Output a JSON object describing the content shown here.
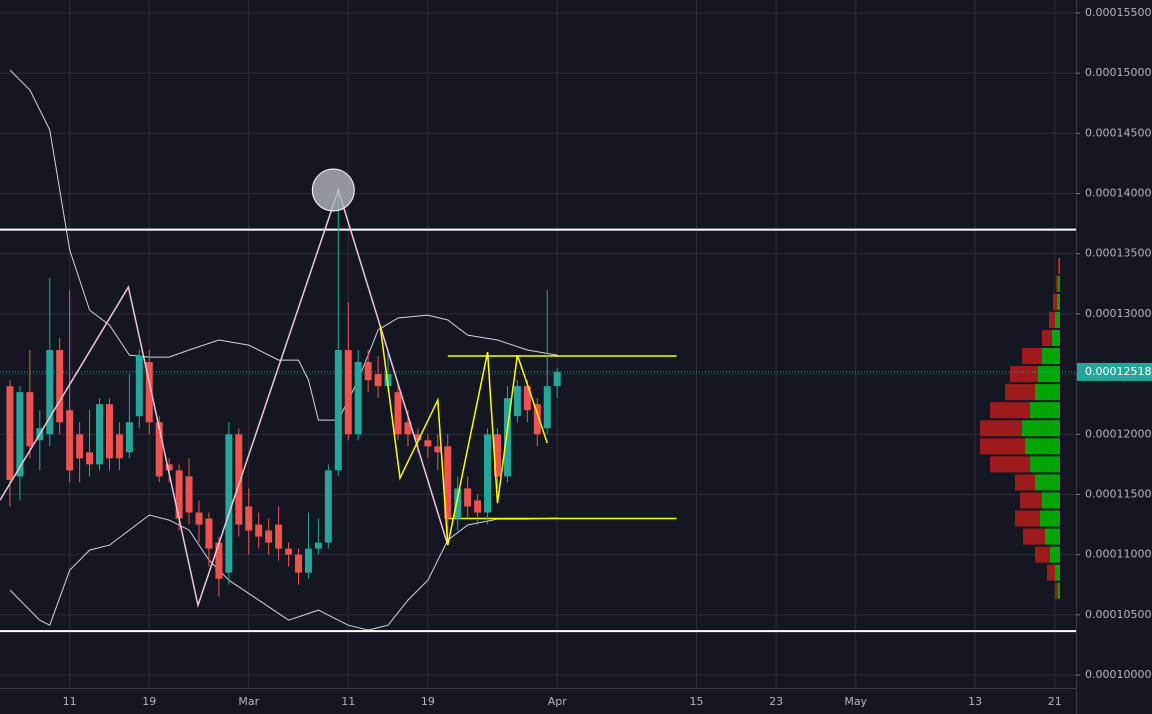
{
  "chart_data": {
    "type": "candlestick",
    "colors": {
      "up": "#26a69a",
      "down": "#ef5350",
      "grid": "#2a2e39",
      "band": "#d1d4dc",
      "level": "#ffffff",
      "pattern": "#f2c4d8",
      "channel": "#ffff00",
      "profile_up": "#00c800",
      "profile_down": "#b71c1c",
      "last": "#26a69a"
    },
    "xlim": [
      -1,
      107.14
    ],
    "ylim": [
      9.892e-05,
      0.00015608
    ],
    "xticks": [
      {
        "value": 6,
        "label": "11"
      },
      {
        "value": 14,
        "label": "19"
      },
      {
        "value": 24,
        "label": "Mar"
      },
      {
        "value": 34,
        "label": "11"
      },
      {
        "value": 42,
        "label": "19"
      },
      {
        "value": 55,
        "label": "Apr"
      },
      {
        "value": 69,
        "label": "15"
      },
      {
        "value": 77,
        "label": "23"
      },
      {
        "value": 85,
        "label": "May"
      },
      {
        "value": 97,
        "label": "13"
      },
      {
        "value": 105,
        "label": "21"
      }
    ],
    "yticks": [
      {
        "value": 0.0001,
        "label": "0.00010000"
      },
      {
        "value": 0.000105,
        "label": "0.00010500"
      },
      {
        "value": 0.00011,
        "label": "0.00011000"
      },
      {
        "value": 0.000115,
        "label": "0.00011500"
      },
      {
        "value": 0.00012,
        "label": "0.00012000"
      },
      {
        "value": 0.000125,
        "label": "0.00012500"
      },
      {
        "value": 0.00013,
        "label": "0.00013000"
      },
      {
        "value": 0.000135,
        "label": "0.00013500"
      },
      {
        "value": 0.00014,
        "label": "0.00014000"
      },
      {
        "value": 0.000145,
        "label": "0.00014500"
      },
      {
        "value": 0.00015,
        "label": "0.00015000"
      },
      {
        "value": 0.000155,
        "label": "0.00015500"
      }
    ],
    "grid": true,
    "last_price": {
      "value": 0.00012518,
      "label": "0.00012518"
    },
    "candles": {
      "x": [
        0,
        1,
        2,
        3,
        4,
        5,
        6,
        7,
        8,
        9,
        10,
        11,
        12,
        13,
        14,
        15,
        16,
        17,
        18,
        19,
        20,
        21,
        22,
        23,
        24,
        25,
        26,
        27,
        28,
        29,
        30,
        31,
        32,
        33,
        34,
        35,
        36,
        37,
        38,
        39,
        40,
        41,
        42,
        43,
        44,
        45,
        46,
        47,
        48,
        49,
        50,
        51,
        52,
        53,
        54,
        55
      ],
      "open": [
        0.000124,
        0.0001165,
        0.0001235,
        0.0001195,
        0.00012,
        0.000127,
        0.000122,
        0.00012,
        0.0001185,
        0.0001175,
        0.0001225,
        0.00012,
        0.0001185,
        0.0001215,
        0.000126,
        0.000121,
        0.0001175,
        0.000117,
        0.0001165,
        0.0001135,
        0.000113,
        0.000111,
        0.0001085,
        0.00012,
        0.000114,
        0.0001125,
        0.000112,
        0.0001125,
        0.0001105,
        0.00011,
        0.0001085,
        0.0001105,
        0.000111,
        0.000117,
        0.000127,
        0.00012,
        0.000126,
        0.000125,
        0.000124,
        0.0001235,
        0.000121,
        0.00012,
        0.0001195,
        0.000119,
        0.000119,
        0.000113,
        0.0001155,
        0.0001145,
        0.0001135,
        0.00012,
        0.0001165,
        0.0001215,
        0.000124,
        0.0001225,
        0.0001205,
        0.000124
      ],
      "high": [
        0.0001245,
        0.000124,
        0.000127,
        0.000122,
        0.000133,
        0.000128,
        0.000132,
        0.000121,
        0.000122,
        0.000123,
        0.000123,
        0.000121,
        0.000125,
        0.000127,
        0.000127,
        0.0001215,
        0.000118,
        0.0001175,
        0.000118,
        0.0001145,
        0.0001135,
        0.0001115,
        0.000121,
        0.0001205,
        0.0001155,
        0.0001135,
        0.000113,
        0.000114,
        0.000111,
        0.0001105,
        0.0001135,
        0.000113,
        0.0001175,
        0.00014,
        0.000131,
        0.000127,
        0.000127,
        0.0001265,
        0.000127,
        0.000124,
        0.000122,
        0.0001205,
        0.00012,
        0.00012,
        0.00012,
        0.0001165,
        0.0001165,
        0.000115,
        0.0001205,
        0.0001205,
        0.000124,
        0.0001245,
        0.0001245,
        0.000123,
        0.000132,
        0.0001255
      ],
      "low": [
        0.000114,
        0.0001145,
        0.000118,
        0.000117,
        0.000119,
        0.00012,
        0.000116,
        0.000116,
        0.0001165,
        0.000117,
        0.000117,
        0.000117,
        0.000118,
        0.0001205,
        0.00012,
        0.000116,
        0.000116,
        0.000112,
        0.0001125,
        0.000111,
        0.000109,
        0.0001065,
        0.0001075,
        0.0001115,
        0.00011,
        0.0001105,
        0.00011,
        0.0001095,
        0.000109,
        0.0001075,
        0.000108,
        0.00011,
        0.0001105,
        0.0001165,
        0.0001195,
        0.0001195,
        0.0001235,
        0.000123,
        0.0001235,
        0.0001195,
        0.000119,
        0.0001185,
        0.000118,
        0.000117,
        0.0001115,
        0.000112,
        0.000113,
        0.0001125,
        0.0001125,
        0.0001155,
        0.000116,
        0.000121,
        0.000121,
        0.000119,
        0.00012,
        0.000123
      ],
      "close": [
        0.0001162,
        0.0001235,
        0.000119,
        0.0001205,
        0.000127,
        0.000121,
        0.000117,
        0.000118,
        0.0001175,
        0.0001225,
        0.000118,
        0.000118,
        0.000121,
        0.0001265,
        0.000121,
        0.0001165,
        0.000117,
        0.000113,
        0.0001135,
        0.0001125,
        0.0001105,
        0.000108,
        0.00012,
        0.0001125,
        0.000112,
        0.0001115,
        0.000111,
        0.0001105,
        0.00011,
        0.0001085,
        0.0001105,
        0.000111,
        0.000117,
        0.000127,
        0.00012,
        0.000126,
        0.0001245,
        0.000124,
        0.000125,
        0.00012,
        0.00012,
        0.0001195,
        0.000119,
        0.0001185,
        0.000113,
        0.0001155,
        0.000114,
        0.0001135,
        0.00012,
        0.0001165,
        0.000123,
        0.000124,
        0.000122,
        0.00012,
        0.000124,
        0.00012518
      ]
    },
    "bands": [
      {
        "x": [
          0,
          2,
          4,
          6,
          8,
          10,
          12,
          14,
          16,
          18,
          21,
          24,
          27,
          29,
          30,
          31,
          33,
          35,
          37,
          39,
          42,
          44,
          46,
          49,
          52,
          55
        ],
        "values": [
          0.00015026,
          0.0001486,
          0.00014528,
          0.00013531,
          0.00013032,
          0.00012907,
          0.00012658,
          0.00012641,
          0.00012641,
          0.000127,
          0.00012783,
          0.00012741,
          0.00012616,
          0.00012616,
          0.0001245,
          0.00012118,
          0.00012118,
          0.0001245,
          0.00012866,
          0.00012966,
          0.0001299,
          0.00012949,
          0.00012824,
          0.00012783,
          0.000127,
          0.00012658
        ]
      },
      {
        "x": [
          0,
          3,
          4,
          6,
          8,
          10,
          12,
          14,
          16,
          18,
          20,
          22,
          25,
          28,
          31,
          33,
          34,
          36,
          38,
          40,
          42,
          44,
          46,
          49,
          52,
          55
        ],
        "values": [
          0.00010705,
          0.00010455,
          0.00010414,
          0.00010871,
          0.00011038,
          0.00011079,
          0.00011204,
          0.00011329,
          0.00011287,
          0.00011204,
          0.00010955,
          0.00010788,
          0.00010622,
          0.00010455,
          0.00010539,
          0.00010455,
          0.00010414,
          0.00010373,
          0.00010414,
          0.00010622,
          0.00010788,
          0.00011121,
          0.00011246,
          0.00011295,
          0.00011295,
          0.00011304
        ]
      }
    ],
    "levels": [
      0.000137,
      0.00010365
    ],
    "channel_levels": {
      "x": [
        44,
        67
      ],
      "values": [
        0.0001265,
        0.000113
      ]
    },
    "pattern": {
      "x": [
        -1,
        11.9,
        18.9,
        33,
        44
      ],
      "values": [
        0.00011453,
        0.00013223,
        0.0001058,
        0.00014029,
        0.00011079
      ]
    },
    "channel_pattern": {
      "x": [
        37.2,
        39.2,
        43,
        44,
        48,
        49,
        51,
        54
      ],
      "values": [
        0.00012907,
        0.00011636,
        0.00012284,
        0.00011079,
        0.00012683,
        0.00011428,
        0.00012658,
        0.00011927
      ]
    },
    "volume_profile": {
      "prices": [
        0.000107,
        0.0001085,
        0.00011,
        0.0001115,
        0.000113,
        0.0001145,
        0.000116,
        0.0001175,
        0.000119,
        0.0001205,
        0.000122,
        0.0001235,
        0.000125,
        0.0001265,
        0.000128,
        0.0001295,
        0.000131,
        0.0001325,
        0.000134
      ],
      "up": [
        2,
        5,
        10,
        15,
        20,
        18,
        25,
        30,
        35,
        38,
        30,
        25,
        22,
        18,
        8,
        5,
        3,
        2,
        1
      ],
      "down": [
        3,
        8,
        15,
        22,
        25,
        22,
        20,
        40,
        45,
        42,
        40,
        30,
        28,
        20,
        10,
        6,
        4,
        2,
        1
      ]
    }
  }
}
